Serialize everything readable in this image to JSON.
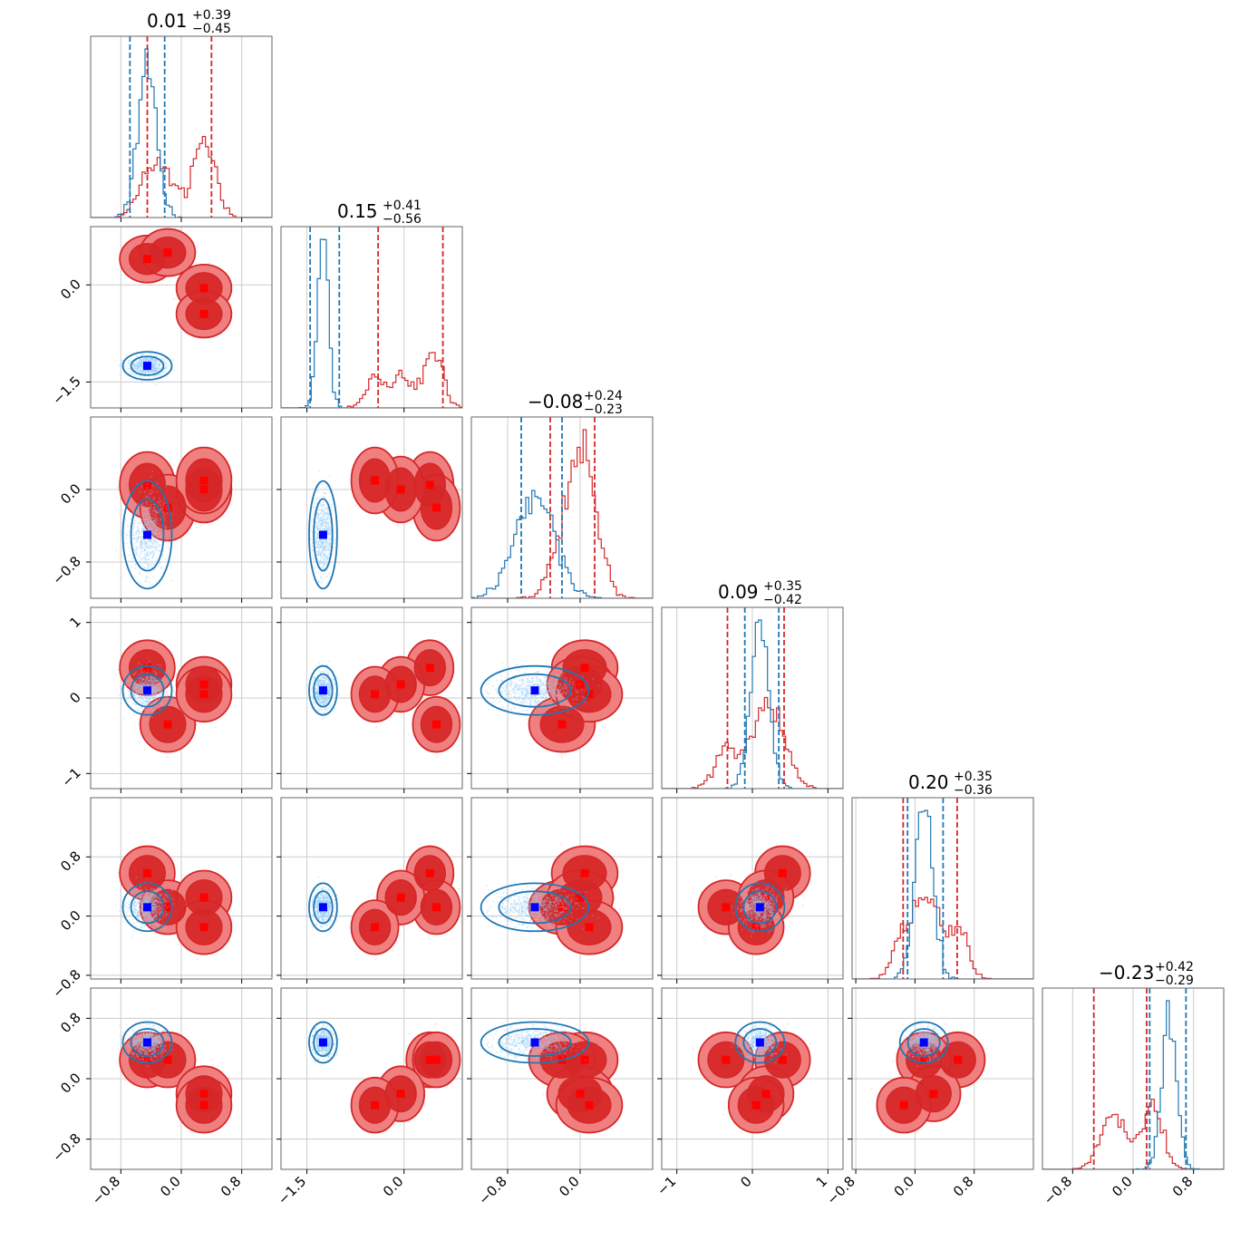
{
  "chart_data": {
    "type": "corner",
    "n_params": 6,
    "series": [
      {
        "name": "posterior-blue",
        "color": "#1f77b4",
        "marker_color": "#0000ff"
      },
      {
        "name": "posterior-red",
        "color": "#d62728",
        "marker_color": "#ff0000"
      }
    ],
    "grid": true,
    "params": [
      {
        "range": [
          -1.2,
          1.2
        ],
        "ticks": [
          -0.8,
          0.0,
          0.8
        ],
        "tick_labels": [
          "−0.8",
          "0.0",
          "0.8"
        ],
        "title": {
          "value": "0.01",
          "plus": "+0.39",
          "minus": "−0.45"
        },
        "blue_quantiles": [
          -0.68,
          -0.22
        ],
        "red_quantiles": [
          -0.45,
          0.4
        ]
      },
      {
        "range": [
          -1.9,
          0.9
        ],
        "ticks": [
          -1.5,
          0.0
        ],
        "tick_labels": [
          "−1.5",
          "0.0"
        ],
        "title": {
          "value": "0.15",
          "plus": "+0.41",
          "minus": "−0.56"
        },
        "blue_quantiles": [
          -1.45,
          -1.0
        ],
        "red_quantiles": [
          -0.4,
          0.6
        ]
      },
      {
        "range": [
          -1.2,
          0.8
        ],
        "ticks": [
          -0.8,
          0.0
        ],
        "tick_labels": [
          "−0.8",
          "0.0"
        ],
        "title": {
          "value": "−0.08",
          "plus": "+0.24",
          "minus": "−0.23"
        },
        "blue_quantiles": [
          -0.65,
          -0.2
        ],
        "red_quantiles": [
          -0.33,
          0.16
        ]
      },
      {
        "range": [
          -1.2,
          1.2
        ],
        "ticks": [
          -1,
          0,
          1
        ],
        "tick_labels": [
          "−1",
          "0",
          "1"
        ],
        "title": {
          "value": "0.09",
          "plus": "+0.35",
          "minus": "−0.42"
        },
        "blue_quantiles": [
          -0.1,
          0.35
        ],
        "red_quantiles": [
          -0.33,
          0.42
        ]
      },
      {
        "range": [
          -0.85,
          1.6
        ],
        "ticks": [
          -0.8,
          0.0,
          0.8
        ],
        "tick_labels": [
          "−0.8",
          "0.0",
          "0.8"
        ],
        "title": {
          "value": "0.20",
          "plus": "+0.35",
          "minus": "−0.36"
        },
        "blue_quantiles": [
          -0.1,
          0.38
        ],
        "red_quantiles": [
          -0.16,
          0.57
        ]
      },
      {
        "range": [
          -1.2,
          1.2
        ],
        "ticks": [
          -0.8,
          0.0,
          0.8
        ],
        "tick_labels": [
          "−0.8",
          "0.0",
          "0.8"
        ],
        "title": {
          "value": "−0.23",
          "plus": "+0.42",
          "minus": "−0.29"
        },
        "blue_quantiles": [
          0.22,
          0.7
        ],
        "red_quantiles": [
          -0.52,
          0.18
        ]
      }
    ],
    "blue_points": [
      {
        "mean": [
          -0.45,
          -1.25,
          -0.5,
          0.1,
          0.12,
          0.48
        ],
        "sd": [
          0.12,
          0.08,
          0.22,
          0.12,
          0.12,
          0.1
        ]
      }
    ],
    "red_points": [
      {
        "mean": [
          -0.45,
          0.4,
          0.05,
          0.4,
          0.58,
          0.25
        ],
        "sd": [
          0.14,
          0.14,
          0.14,
          0.14,
          0.14,
          0.14
        ]
      },
      {
        "mean": [
          -0.18,
          0.5,
          -0.2,
          -0.35,
          0.12,
          0.25
        ],
        "sd": [
          0.14,
          0.14,
          0.14,
          0.14,
          0.14,
          0.14
        ]
      },
      {
        "mean": [
          0.3,
          -0.05,
          0.0,
          0.18,
          0.25,
          -0.2
        ],
        "sd": [
          0.14,
          0.14,
          0.14,
          0.14,
          0.14,
          0.14
        ]
      },
      {
        "mean": [
          0.3,
          -0.45,
          0.1,
          0.05,
          -0.15,
          -0.35
        ],
        "sd": [
          0.14,
          0.14,
          0.14,
          0.14,
          0.14,
          0.14
        ]
      }
    ]
  }
}
